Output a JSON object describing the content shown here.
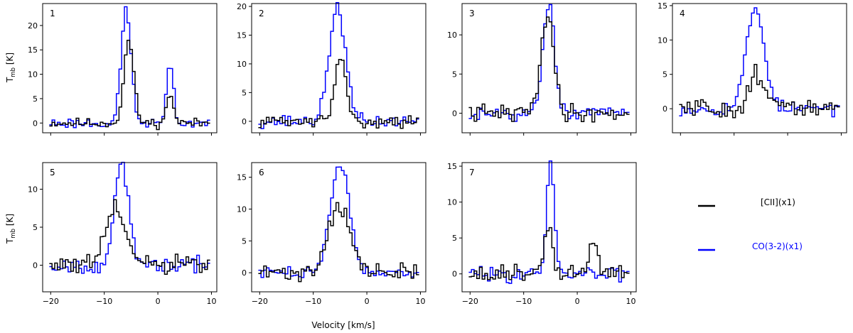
{
  "figure": {
    "xlabel": "Velocity [km/s]",
    "ylabel_main": "T",
    "ylabel_sub": "mb",
    "ylabel_unit": " [K]"
  },
  "legend": {
    "entries": [
      {
        "label": "[CII](x1)",
        "color": "#000000"
      },
      {
        "label": "CO(3-2)(x1)",
        "color": "#0000ff"
      }
    ]
  },
  "chart_data": [
    {
      "type": "line",
      "panel": "1",
      "xlim": [
        -21.5,
        11
      ],
      "ylim": [
        -2,
        24.5
      ],
      "xticks": [
        -20,
        -10,
        0,
        10
      ],
      "yticks": [
        0,
        5,
        10,
        15,
        20
      ],
      "x_tick_labels_shown": false,
      "ylabel_shown": true,
      "series": [
        {
          "name": "[CII](x1)",
          "color": "#000000",
          "features": [
            {
              "center": -5.4,
              "amp": 17,
              "width": 0.9
            },
            {
              "center": 2.3,
              "amp": 6.3,
              "width": 0.6
            }
          ],
          "noise": 0.7,
          "seed": 11
        },
        {
          "name": "CO(3-2)(x1)",
          "color": "#0000ff",
          "features": [
            {
              "center": -5.9,
              "amp": 23.5,
              "width": 0.9
            },
            {
              "center": 2.3,
              "amp": 12,
              "width": 0.6
            }
          ],
          "noise": 0.8,
          "seed": 23
        }
      ]
    },
    {
      "type": "line",
      "panel": "2",
      "xlim": [
        -21.5,
        11
      ],
      "ylim": [
        -2,
        20.5
      ],
      "xticks": [
        -20,
        -10,
        0,
        10
      ],
      "yticks": [
        0,
        5,
        10,
        15,
        20
      ],
      "x_tick_labels_shown": false,
      "ylabel_shown": false,
      "series": [
        {
          "name": "[CII](x1)",
          "color": "#000000",
          "features": [
            {
              "center": -4.9,
              "amp": 11.3,
              "width": 1.0
            }
          ],
          "noise": 0.7,
          "seed": 31
        },
        {
          "name": "CO(3-2)(x1)",
          "color": "#0000ff",
          "features": [
            {
              "center": -5.5,
              "amp": 20,
              "width": 1.5
            }
          ],
          "noise": 0.8,
          "seed": 37
        }
      ]
    },
    {
      "type": "line",
      "panel": "3",
      "xlim": [
        -21.5,
        11
      ],
      "ylim": [
        -2.5,
        14
      ],
      "xticks": [
        -20,
        -10,
        0,
        10
      ],
      "yticks": [
        0,
        5,
        10
      ],
      "x_tick_labels_shown": false,
      "ylabel_shown": false,
      "series": [
        {
          "name": "[CII](x1)",
          "color": "#000000",
          "features": [
            {
              "center": -5.6,
              "amp": 12.7,
              "width": 1.2
            }
          ],
          "noise": 0.8,
          "seed": 41
        },
        {
          "name": "CO(3-2)(x1)",
          "color": "#0000ff",
          "features": [
            {
              "center": -5.3,
              "amp": 13.7,
              "width": 1.1
            }
          ],
          "noise": 0.6,
          "seed": 43
        }
      ]
    },
    {
      "type": "line",
      "panel": "4",
      "xlim": [
        -21.5,
        11
      ],
      "ylim": [
        -3.5,
        15.3
      ],
      "xticks": [
        -20,
        -10,
        0,
        10
      ],
      "yticks": [
        0,
        5,
        10,
        15
      ],
      "x_tick_labels_shown": false,
      "ylabel_shown": false,
      "series": [
        {
          "name": "[CII](x1)",
          "color": "#000000",
          "features": [
            {
              "center": -5.4,
              "amp": 5.3,
              "width": 1.5
            }
          ],
          "noise": 1.1,
          "seed": 51
        },
        {
          "name": "CO(3-2)(x1)",
          "color": "#0000ff",
          "features": [
            {
              "center": -6.0,
              "amp": 14.5,
              "width": 1.7
            }
          ],
          "noise": 0.7,
          "seed": 53
        }
      ]
    },
    {
      "type": "line",
      "panel": "5",
      "xlim": [
        -21.5,
        11
      ],
      "ylim": [
        -3.5,
        13.5
      ],
      "xticks": [
        -20,
        -10,
        0,
        10
      ],
      "yticks": [
        0,
        5,
        10
      ],
      "x_tick_labels_shown": true,
      "ylabel_shown": true,
      "series": [
        {
          "name": "[CII](x1)",
          "color": "#000000",
          "features": [
            {
              "center": -7.8,
              "amp": 7.5,
              "width": 1.8
            }
          ],
          "noise": 1.0,
          "seed": 61
        },
        {
          "name": "CO(3-2)(x1)",
          "color": "#0000ff",
          "features": [
            {
              "center": -6.8,
              "amp": 13.2,
              "width": 1.3
            }
          ],
          "noise": 0.7,
          "seed": 67
        }
      ]
    },
    {
      "type": "line",
      "panel": "6",
      "xlim": [
        -21.5,
        11
      ],
      "ylim": [
        -3,
        17.3
      ],
      "xticks": [
        -20,
        -10,
        0,
        10
      ],
      "yticks": [
        0,
        5,
        10,
        15
      ],
      "x_tick_labels_shown": true,
      "ylabel_shown": false,
      "series": [
        {
          "name": "[CII](x1)",
          "color": "#000000",
          "features": [
            {
              "center": -5.2,
              "amp": 10.8,
              "width": 2.0
            }
          ],
          "noise": 1.0,
          "seed": 71
        },
        {
          "name": "CO(3-2)(x1)",
          "color": "#0000ff",
          "features": [
            {
              "center": -5.0,
              "amp": 17,
              "width": 1.8
            }
          ],
          "noise": 0.6,
          "seed": 73
        }
      ]
    },
    {
      "type": "line",
      "panel": "7",
      "xlim": [
        -21.5,
        11
      ],
      "ylim": [
        -2.5,
        15.5
      ],
      "xticks": [
        -20,
        -10,
        0,
        10
      ],
      "yticks": [
        0,
        5,
        10,
        15
      ],
      "x_tick_labels_shown": true,
      "ylabel_shown": false,
      "series": [
        {
          "name": "[CII](x1)",
          "color": "#000000",
          "features": [
            {
              "center": -5.3,
              "amp": 7,
              "width": 0.7
            },
            {
              "center": 3.0,
              "amp": 4.8,
              "width": 0.8
            }
          ],
          "noise": 0.9,
          "seed": 81
        },
        {
          "name": "CO(3-2)(x1)",
          "color": "#0000ff",
          "features": [
            {
              "center": -5.0,
              "amp": 15.3,
              "width": 0.7
            }
          ],
          "noise": 0.7,
          "seed": 83
        }
      ]
    }
  ]
}
